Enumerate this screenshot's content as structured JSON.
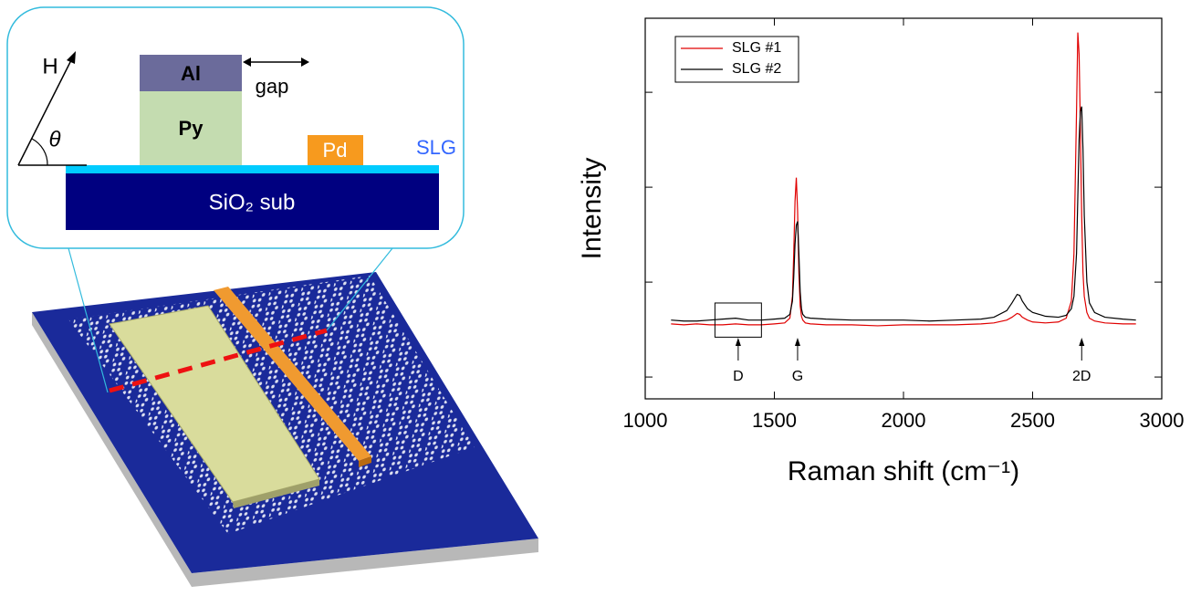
{
  "diagram": {
    "labels": {
      "h": "H",
      "theta": "θ",
      "al": "Al",
      "gap": "gap",
      "py": "Py",
      "pd": "Pd",
      "slg": "SLG",
      "sio2": "SiO₂ sub"
    }
  },
  "chart_data": {
    "type": "line",
    "x_label": "Raman shift (cm⁻¹)",
    "y_label": "Intensity",
    "x": [
      1100,
      1150,
      1200,
      1250,
      1300,
      1350,
      1400,
      1450,
      1500,
      1540,
      1560,
      1570,
      1575,
      1580,
      1585,
      1590,
      1595,
      1600,
      1605,
      1610,
      1620,
      1640,
      1700,
      1800,
      1900,
      2000,
      2100,
      2200,
      2300,
      2350,
      2400,
      2420,
      2440,
      2450,
      2460,
      2480,
      2500,
      2550,
      2600,
      2630,
      2650,
      2660,
      2670,
      2675,
      2680,
      2685,
      2690,
      2695,
      2700,
      2710,
      2720,
      2740,
      2780,
      2850,
      2900
    ],
    "series": [
      {
        "name": "SLG #1",
        "color": "#e00000",
        "values": [
          0.56,
          0.55,
          0.56,
          0.55,
          0.55,
          0.56,
          0.55,
          0.55,
          0.56,
          0.57,
          0.62,
          0.85,
          1.3,
          1.85,
          2.1,
          1.75,
          1.1,
          0.75,
          0.64,
          0.6,
          0.57,
          0.56,
          0.55,
          0.55,
          0.54,
          0.55,
          0.55,
          0.55,
          0.56,
          0.57,
          0.6,
          0.63,
          0.67,
          0.66,
          0.63,
          0.6,
          0.58,
          0.57,
          0.58,
          0.62,
          0.8,
          1.3,
          2.8,
          3.63,
          3.4,
          2.6,
          1.7,
          1.1,
          0.85,
          0.68,
          0.62,
          0.59,
          0.57,
          0.56,
          0.56
        ]
      },
      {
        "name": "SLG #2",
        "color": "#000000",
        "values": [
          0.6,
          0.59,
          0.59,
          0.6,
          0.61,
          0.62,
          0.6,
          0.6,
          0.61,
          0.62,
          0.66,
          0.8,
          1.05,
          1.4,
          1.6,
          1.64,
          1.3,
          0.9,
          0.72,
          0.66,
          0.63,
          0.62,
          0.61,
          0.6,
          0.6,
          0.6,
          0.59,
          0.6,
          0.61,
          0.63,
          0.7,
          0.78,
          0.87,
          0.86,
          0.8,
          0.72,
          0.68,
          0.64,
          0.63,
          0.65,
          0.72,
          0.85,
          1.3,
          1.9,
          2.5,
          2.8,
          2.85,
          2.4,
          1.7,
          1.0,
          0.78,
          0.68,
          0.63,
          0.61,
          0.6
        ]
      }
    ],
    "xlim": [
      1000,
      3000
    ],
    "xticks": [
      1000,
      1500,
      2000,
      2500,
      3000
    ],
    "ylim": [
      -0.23,
      3.78
    ],
    "yticks": [
      0,
      1,
      2,
      3
    ],
    "legend": "upper left",
    "annotations": [
      {
        "text": "D",
        "x": 1360
      },
      {
        "text": "G",
        "x": 1590
      },
      {
        "text": "2D",
        "x": 2690
      }
    ],
    "highlight_box": {
      "xlim": [
        1270,
        1450
      ],
      "ylim": [
        0.42,
        0.78
      ]
    }
  }
}
